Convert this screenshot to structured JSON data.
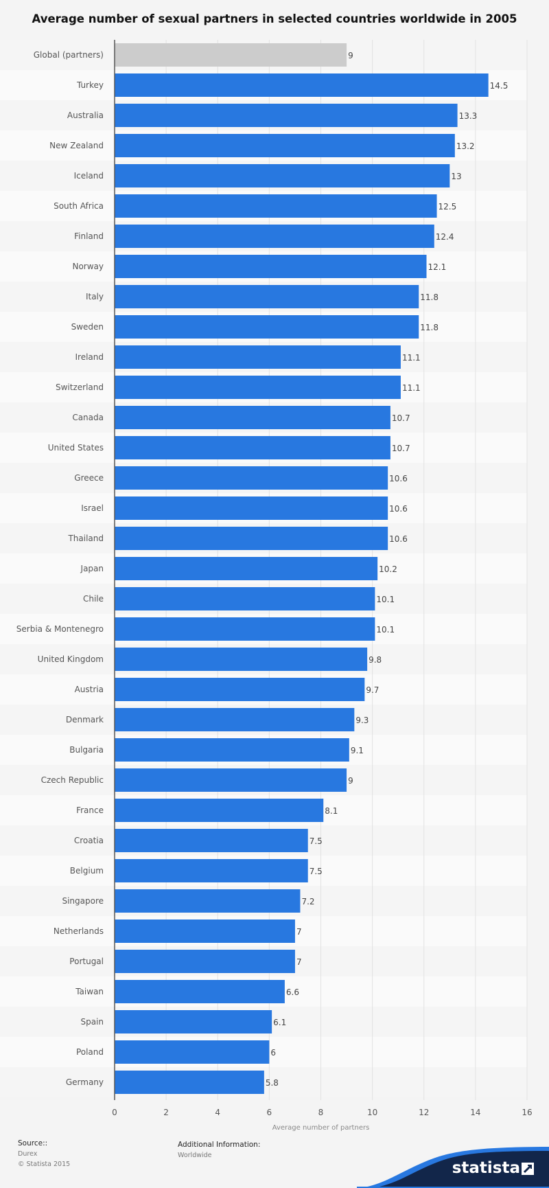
{
  "chart_data": {
    "type": "bar",
    "orientation": "horizontal",
    "title": "Average number of sexual partners in selected countries worldwide in 2005",
    "xlabel": "Average number of partners",
    "ylabel": "",
    "xlim": [
      0,
      16
    ],
    "ticks": [
      "0",
      "2",
      "4",
      "6",
      "8",
      "10",
      "12",
      "14",
      "16"
    ],
    "grid": true,
    "legend": "none",
    "colors": {
      "bar": "#2878e0",
      "highlight": "#cccccc"
    },
    "categories": [
      "Global (partners)",
      "Turkey",
      "Australia",
      "New Zealand",
      "Iceland",
      "South Africa",
      "Finland",
      "Norway",
      "Italy",
      "Sweden",
      "Ireland",
      "Switzerland",
      "Canada",
      "United States",
      "Greece",
      "Israel",
      "Thailand",
      "Japan",
      "Chile",
      "Serbia & Montenegro",
      "United Kingdom",
      "Austria",
      "Denmark",
      "Bulgaria",
      "Czech Republic",
      "France",
      "Croatia",
      "Belgium",
      "Singapore",
      "Netherlands",
      "Portugal",
      "Taiwan",
      "Spain",
      "Poland",
      "Germany"
    ],
    "values": [
      9,
      14.5,
      13.3,
      13.2,
      13,
      12.5,
      12.4,
      12.1,
      11.8,
      11.8,
      11.1,
      11.1,
      10.7,
      10.7,
      10.6,
      10.6,
      10.6,
      10.2,
      10.1,
      10.1,
      9.8,
      9.7,
      9.3,
      9.1,
      9,
      8.1,
      7.5,
      7.5,
      7.2,
      7,
      7,
      6.6,
      6.1,
      6,
      5.8
    ],
    "value_labels": [
      "9",
      "14.5",
      "13.3",
      "13.2",
      "13",
      "12.5",
      "12.4",
      "12.1",
      "11.8",
      "11.8",
      "11.1",
      "11.1",
      "10.7",
      "10.7",
      "10.6",
      "10.6",
      "10.6",
      "10.2",
      "10.1",
      "10.1",
      "9.8",
      "9.7",
      "9.3",
      "9.1",
      "9",
      "8.1",
      "7.5",
      "7.5",
      "7.2",
      "7",
      "7",
      "6.6",
      "6.1",
      "6",
      "5.8"
    ],
    "highlight_index": 0
  },
  "footer": {
    "source_heading": "Source::",
    "source_lines": [
      "Durex",
      "© Statista 2015"
    ],
    "additional_heading": "Additional Information:",
    "additional_lines": [
      "Worldwide"
    ],
    "brand": "statista"
  }
}
